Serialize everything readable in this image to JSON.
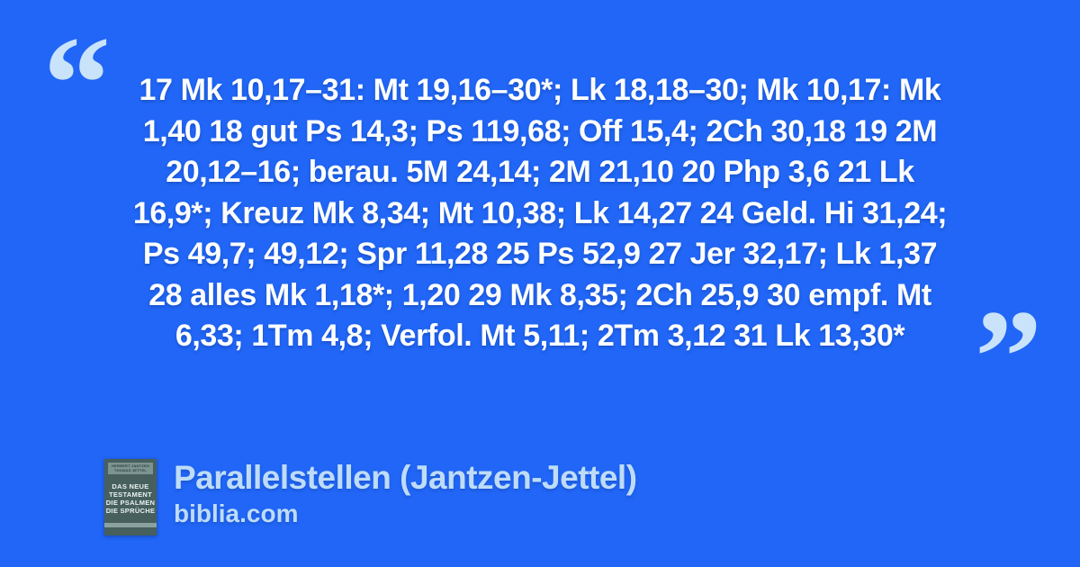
{
  "page": {
    "background_color": "#2166f6",
    "quote_text_color": "#fdfeff",
    "accent_text_color": "#bedcf8",
    "quote_mark_color": "#c9e3fa"
  },
  "quote": {
    "open_mark": "“",
    "close_mark": "”",
    "lines": [
      "17 Mk 10,17–31: Mt 19,16–30*; Lk 18,18–30; Mk 10,17: Mk",
      "1,40 18 gut Ps 14,3; Ps 119,68; Off 15,4; 2Ch 30,18 19 2M",
      "20,12–16; berau. 5M 24,14; 2M 21,10 20 Php 3,6 21 Lk",
      "16,9*; Kreuz Mk 8,34; Mt 10,38; Lk 14,27 24 Geld. Hi 31,24;",
      "Ps 49,7; 49,12; Spr 11,28 25 Ps 52,9 27 Jer 32,17; Lk 1,37",
      "28 alles Mk 1,18*; 1,20 29 Mk 8,35; 2Ch 25,9 30 empf. Mt",
      "6,33; 1Tm 4,8; Verfol. Mt 5,11; 2Tm 3,12 31 Lk 13,30*"
    ]
  },
  "footer": {
    "title": "Parallelstellen (Jantzen-Jettel)",
    "site": "biblia.com",
    "book_cover": {
      "authors": [
        "HERBERT JANTZEN",
        "THOMAS JETTEL"
      ],
      "title_lines": [
        "DAS NEUE",
        "TESTAMENT",
        "DIE PSALMEN",
        "DIE SPRÜCHE"
      ],
      "cover_color": "#47605d",
      "band_color": "#7d9390",
      "stripe_color": "#8ba19e"
    }
  }
}
